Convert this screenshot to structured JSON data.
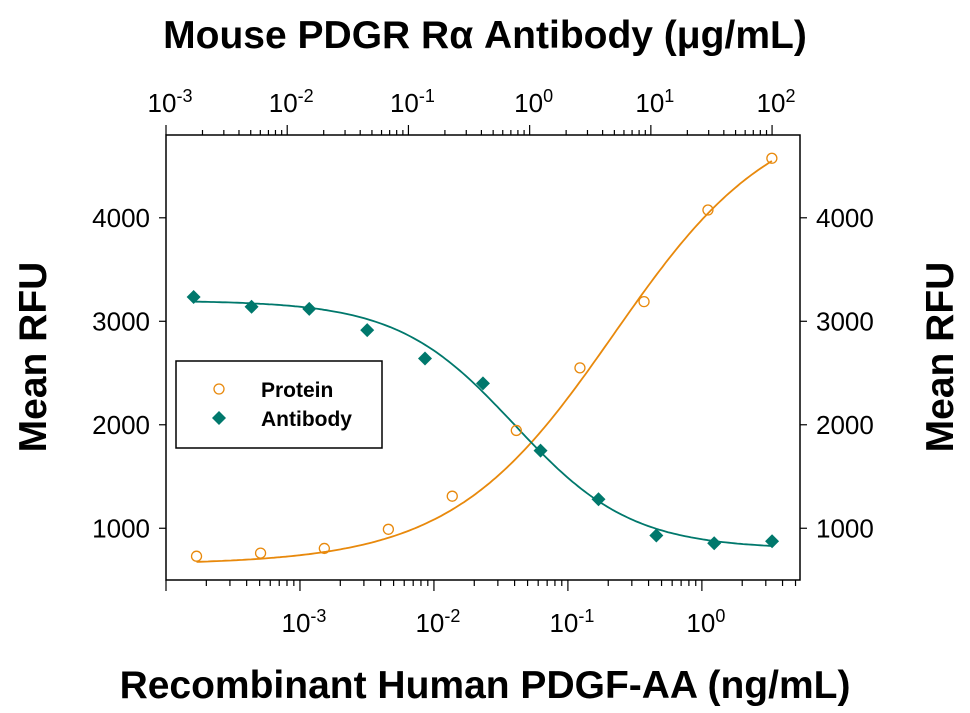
{
  "chart_data": {
    "type": "scatter",
    "title": "Mouse PDGR Rα Antibody (μg/mL)",
    "xlabel": "Recombinant Human PDGF-AA (ng/mL)",
    "ylabel": "Mean RFU",
    "ylabel_right": "Mean RFU",
    "x_scale": "log",
    "x_top_scale": "log",
    "xlim": [
      0.0001,
      5.4
    ],
    "xlim_top": [
      0.001,
      170
    ],
    "ylim": [
      500,
      4800
    ],
    "grid": false,
    "legend_position": "middle-left",
    "x_ticks": [
      {
        "base": "10",
        "exp": "-3",
        "value": 0.001
      },
      {
        "base": "10",
        "exp": "-2",
        "value": 0.01
      },
      {
        "base": "10",
        "exp": "-1",
        "value": 0.1
      },
      {
        "base": "10",
        "exp": "0",
        "value": 1
      }
    ],
    "x_top_ticks": [
      {
        "base": "10",
        "exp": "-3",
        "value": 0.001
      },
      {
        "base": "10",
        "exp": "-2",
        "value": 0.01
      },
      {
        "base": "10",
        "exp": "-1",
        "value": 0.1
      },
      {
        "base": "10",
        "exp": "0",
        "value": 1
      },
      {
        "base": "10",
        "exp": "1",
        "value": 10
      },
      {
        "base": "10",
        "exp": "2",
        "value": 100
      }
    ],
    "y_ticks": [
      "1000",
      "2000",
      "3000",
      "4000"
    ],
    "series": [
      {
        "name": "Protein",
        "axis": "bottom",
        "marker": "open-circle",
        "color": "#E8890C",
        "x": [
          0.000169,
          0.000508,
          0.00152,
          0.00457,
          0.0137,
          0.0412,
          0.123,
          0.37,
          1.11,
          3.33
        ],
        "y": [
          730,
          760,
          805,
          990,
          1310,
          1945,
          2550,
          3190,
          4075,
          4575
        ],
        "fit": {
          "model": "4PL",
          "bottom": 650,
          "top": 5100,
          "ec50": 0.22,
          "hill": 0.72
        }
      },
      {
        "name": "Antibody",
        "axis": "top",
        "marker": "filled-diamond",
        "color": "#00786C",
        "x": [
          0.00169,
          0.00508,
          0.0152,
          0.0457,
          0.137,
          0.412,
          1.23,
          3.7,
          11.1,
          33.3,
          100
        ],
        "y": [
          3235,
          3140,
          3120,
          2915,
          2640,
          2400,
          1750,
          1280,
          930,
          855,
          875
        ],
        "fit": {
          "model": "4PL",
          "bottom": 800,
          "top": 3200,
          "ec50": 0.75,
          "hill": 0.9
        }
      }
    ]
  }
}
